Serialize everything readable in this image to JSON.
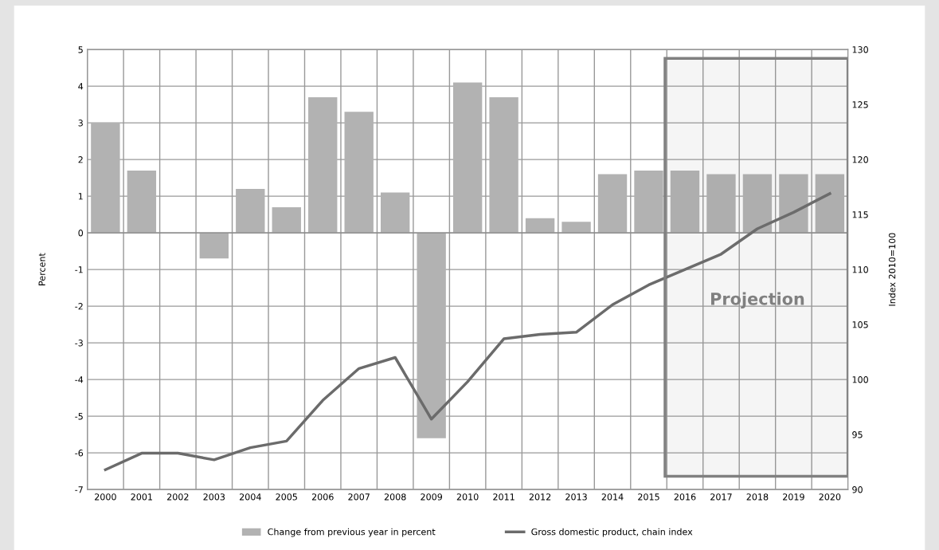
{
  "chart_data": {
    "type": "bar",
    "xlabel": null,
    "ylabel": "Percent",
    "y2label": "Index 2010=100",
    "categories": [
      "2000",
      "2001",
      "2002",
      "2003",
      "2004",
      "2005",
      "2006",
      "2007",
      "2008",
      "2009",
      "2010",
      "2011",
      "2012",
      "2013",
      "2014",
      "2015",
      "2016",
      "2017",
      "2018",
      "2019",
      "2020"
    ],
    "series": [
      {
        "name": "Change from previous year in percent",
        "color": "#b2b2b2",
        "values": [
          3.0,
          1.7,
          0.0,
          -0.7,
          1.2,
          0.7,
          3.7,
          3.3,
          1.1,
          -5.6,
          4.1,
          3.7,
          0.4,
          0.3,
          1.6,
          1.7,
          1.7,
          1.6,
          1.6,
          1.6,
          1.6
        ]
      },
      {
        "name": "Gross domestic product, chain index",
        "type": "line",
        "axis": "y2",
        "color": "#6b6b6b",
        "values": [
          91.8,
          93.3,
          93.3,
          92.7,
          93.8,
          94.4,
          98.1,
          101.0,
          102.0,
          96.4,
          99.8,
          103.7,
          104.1,
          104.3,
          106.8,
          108.6,
          110.0,
          111.4,
          113.7,
          115.2,
          116.9
        ]
      }
    ],
    "ylim": [
      -7,
      5
    ],
    "yticks": [
      -7,
      -6,
      -5,
      -4,
      -3,
      -2,
      -1,
      0,
      1,
      2,
      3,
      4,
      5
    ],
    "y2lim": [
      90,
      130
    ],
    "y2ticks": [
      90,
      95,
      100,
      105,
      110,
      115,
      120,
      125,
      130
    ],
    "bands": [
      {
        "axis": "x",
        "from": "2016",
        "to": "2020",
        "label": "Projection",
        "color": "#808080"
      }
    ],
    "grid": true,
    "legend": "bottom",
    "marker": "none",
    "line_style": "solid"
  }
}
